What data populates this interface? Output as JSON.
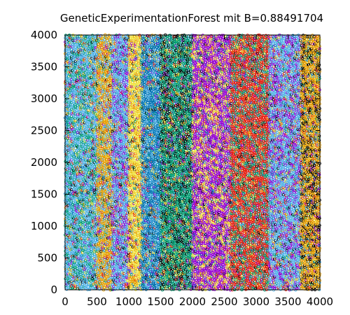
{
  "chart_data": {
    "type": "scatter",
    "title": "GeneticExperimentationForest mit B=0.88491704",
    "xlabel": "",
    "ylabel": "",
    "xlim": [
      0,
      4000
    ],
    "ylim": [
      0,
      4000
    ],
    "grid": false,
    "legend": "none",
    "x_ticks": [
      0,
      500,
      1000,
      1500,
      2000,
      2500,
      3000,
      3500,
      4000
    ],
    "y_ticks": [
      0,
      500,
      1000,
      1500,
      2000,
      2500,
      3000,
      3500,
      4000
    ],
    "x_tick_labels": [
      "0",
      "500",
      "1000",
      "1500",
      "2000",
      "2500",
      "3000",
      "3500",
      "4000"
    ],
    "y_tick_labels": [
      "0",
      "500",
      "1000",
      "1500",
      "2000",
      "2500",
      "3000",
      "3500",
      "4000"
    ],
    "marker": "open-circle",
    "bands": [
      {
        "x_from": 0,
        "x_to": 500,
        "dominant_color": "#56b4e9",
        "secondary_color": "#009e73"
      },
      {
        "x_from": 500,
        "x_to": 750,
        "dominant_color": "#e69f00",
        "secondary_color": "#56b4e9"
      },
      {
        "x_from": 750,
        "x_to": 1000,
        "dominant_color": "#56b4e9",
        "secondary_color": "#9400d3"
      },
      {
        "x_from": 1000,
        "x_to": 1200,
        "dominant_color": "#f0e442",
        "secondary_color": "#e69f00"
      },
      {
        "x_from": 1200,
        "x_to": 1500,
        "dominant_color": "#0072b2",
        "secondary_color": "#56b4e9"
      },
      {
        "x_from": 1500,
        "x_to": 2000,
        "dominant_color": "#009e73",
        "secondary_color": "#000000"
      },
      {
        "x_from": 2000,
        "x_to": 2600,
        "dominant_color": "#9400d3",
        "secondary_color": "#f0e442"
      },
      {
        "x_from": 2600,
        "x_to": 3200,
        "dominant_color": "#e51e10",
        "secondary_color": "#009e73"
      },
      {
        "x_from": 3200,
        "x_to": 3700,
        "dominant_color": "#56b4e9",
        "secondary_color": "#9400d3"
      },
      {
        "x_from": 3700,
        "x_to": 4000,
        "dominant_color": "#e69f00",
        "secondary_color": "#000000"
      }
    ],
    "series_colors": [
      "#9400d3",
      "#009e73",
      "#56b4e9",
      "#e69f00",
      "#f0e442",
      "#0072b2",
      "#e51e10",
      "#000000"
    ]
  }
}
